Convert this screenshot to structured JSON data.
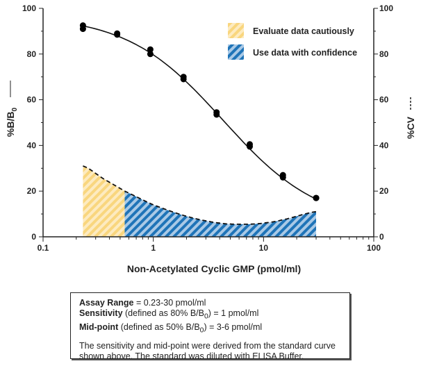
{
  "chart_data": {
    "type": "line",
    "xlabel": "Non-Acetylated Cyclic GMP (pmol/ml)",
    "ylabel": "%B/B",
    "ylabel_sub": "0",
    "ylabel_line_style": "solid",
    "y2label": "%CV",
    "y2label_line_style": "dashed",
    "xscale": "log",
    "xlim": [
      0.1,
      100
    ],
    "ylim": [
      0,
      100
    ],
    "y2lim": [
      0,
      100
    ],
    "xticks": [
      "0.1",
      "1",
      "10",
      "100"
    ],
    "yticks": [
      "0",
      "20",
      "40",
      "60",
      "80",
      "100"
    ],
    "y2ticks": [
      "0",
      "20",
      "40",
      "60",
      "80",
      "100"
    ],
    "grid": false,
    "legend_position": "top-right",
    "legend": [
      {
        "label": "Evaluate data cautiously",
        "color": "#f9d67e",
        "pattern": "hatched"
      },
      {
        "label": "Use data with confidence",
        "color": "#1f74b8",
        "pattern": "hatched"
      }
    ],
    "series": [
      {
        "type": "scatter+curve",
        "axis": "left",
        "x": [
          0.23,
          0.23,
          0.47,
          0.47,
          0.94,
          0.94,
          1.88,
          1.88,
          3.75,
          3.75,
          7.5,
          7.5,
          15,
          15,
          30,
          30
        ],
        "y": [
          92.5,
          91,
          89,
          88.5,
          82,
          80,
          70,
          69,
          54.5,
          53.5,
          40.5,
          39.5,
          27,
          26,
          17,
          17
        ]
      },
      {
        "type": "dashed-area",
        "axis": "right",
        "x": [
          0.23,
          0.35,
          0.55,
          1,
          2,
          4,
          7,
          10,
          15,
          30
        ],
        "y": [
          31,
          25.5,
          20,
          14,
          9,
          6,
          5.5,
          6,
          7.5,
          11
        ]
      }
    ],
    "regions": [
      {
        "label": "Evaluate data cautiously",
        "x_from": 0.23,
        "x_to": 0.55,
        "color": "#f9d67e"
      },
      {
        "label": "Use data with confidence",
        "x_from": 0.55,
        "x_to": 30,
        "color": "#1f74b8"
      }
    ]
  },
  "info": {
    "assay_label": "Assay Range",
    "assay_value": " = 0.23-30 pmol/ml",
    "sens_label": "Sensitivity",
    "sens_pre": " (defined as 80% B/B",
    "sens_sub": "0",
    "sens_post": ") = 1 pmol/ml",
    "mid_label": "Mid-point",
    "mid_pre": " (defined as 50% B/B",
    "mid_sub": "0",
    "mid_post": ") = 3-6 pmol/ml",
    "note": "The sensitivity and mid-point were derived from the standard curve shown above. The standard was diluted with ELISA Buffer."
  }
}
